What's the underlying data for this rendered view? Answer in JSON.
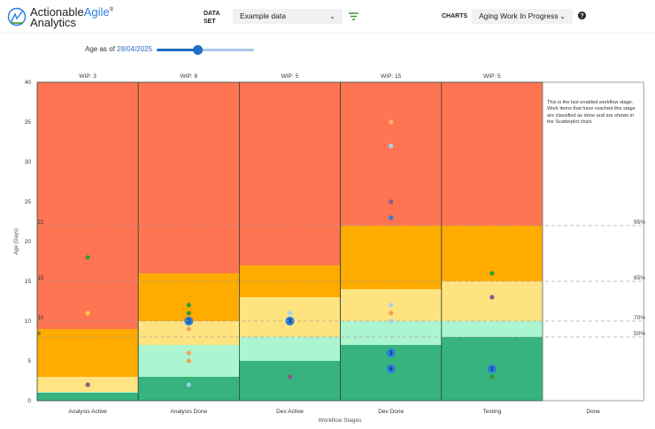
{
  "header": {
    "logo_text_1": "Actionable",
    "logo_text_2": "Agile",
    "logo_text_3": "Analytics",
    "logo_reg": "®",
    "dataset_label_1": "DATA",
    "dataset_label_2": "SET",
    "dataset_value": "Example data",
    "filter_icon": "filter-icon",
    "charts_label": "CHARTS",
    "charts_value": "Aging Work In Progress",
    "help_icon": "question-circle-icon"
  },
  "controls": {
    "age_label": "Age as of",
    "age_date": "28/04/2025",
    "slider_fraction": 0.42
  },
  "chart_data": {
    "type": "scatter",
    "title": "",
    "xlabel": "Workflow Stages",
    "ylabel": "Age (Days)",
    "ylim": [
      0,
      40
    ],
    "yticks": [
      0,
      5,
      10,
      15,
      20,
      25,
      30,
      35,
      40
    ],
    "band_colors": {
      "green": "#36b37e",
      "light_green": "#abf5d1",
      "yellow": "#ffe380",
      "orange": "#ffab00",
      "red": "#ff7452"
    },
    "percentiles": [
      {
        "label": "95%",
        "value": 22
      },
      {
        "label": "85%",
        "value": 15
      },
      {
        "label": "70%",
        "value": 10
      },
      {
        "label": "50%",
        "value": 8
      }
    ],
    "done_note": "This is the last enabled workflow stage. Work items that have reached this stage are classified as done and are shown in the Scatterplot chart.",
    "columns": [
      {
        "name": "Analysis Active",
        "wip": "WIP: 3",
        "bands": [
          1,
          1.1,
          3,
          9
        ],
        "points": [
          {
            "y": 18,
            "color": "#3a9a2e"
          },
          {
            "y": 11,
            "color": "#ffd23f"
          },
          {
            "y": 2,
            "color": "#8b5a8c"
          }
        ]
      },
      {
        "name": "Analysis Done",
        "wip": "WIP: 8",
        "bands": [
          3,
          7,
          10,
          16
        ],
        "points": [
          {
            "y": 12,
            "color": "#3a9a2e"
          },
          {
            "y": 11,
            "color": "#3a9a2e"
          },
          {
            "y": 10,
            "color": "#2a7de1",
            "count": "2"
          },
          {
            "y": 9,
            "color": "#f5a05a"
          },
          {
            "y": 6,
            "color": "#f5a05a"
          },
          {
            "y": 5,
            "color": "#f5a05a"
          },
          {
            "y": 2,
            "color": "#8fd3f0"
          }
        ]
      },
      {
        "name": "Dev Active",
        "wip": "WIP: 5",
        "bands": [
          5,
          8,
          13,
          17
        ],
        "points": [
          {
            "y": 11,
            "color": "#a9d3f0"
          },
          {
            "y": 10,
            "color": "#2a7de1",
            "count": "3"
          },
          {
            "y": 3,
            "color": "#8b5a8c"
          }
        ]
      },
      {
        "name": "Dev Done",
        "wip": "WIP: 15",
        "bands": [
          7,
          10,
          14,
          22
        ],
        "points": [
          {
            "y": 35,
            "color": "#ffb36b"
          },
          {
            "y": 32,
            "color": "#a9d3f0"
          },
          {
            "y": 25,
            "color": "#8b5a8c"
          },
          {
            "y": 23,
            "color": "#2a7de1"
          },
          {
            "y": 12,
            "color": "#a9d3f0"
          },
          {
            "y": 11,
            "color": "#f5a05a"
          },
          {
            "y": 10,
            "color": "#a9d3f0"
          },
          {
            "y": 6,
            "color": "#2a7de1",
            "count": "3"
          },
          {
            "y": 4,
            "color": "#2a7de1",
            "count": "5"
          }
        ]
      },
      {
        "name": "Testing",
        "wip": "WIP: 5",
        "bands": [
          8,
          10,
          15,
          22
        ],
        "points": [
          {
            "y": 16,
            "color": "#3a9a2e"
          },
          {
            "y": 13,
            "color": "#8b5a8c"
          },
          {
            "y": 4,
            "color": "#2a7de1",
            "count": "2"
          },
          {
            "y": 3,
            "color": "#3a9a2e"
          }
        ]
      },
      {
        "name": "Done",
        "wip": "",
        "bands": null,
        "points": []
      }
    ]
  }
}
